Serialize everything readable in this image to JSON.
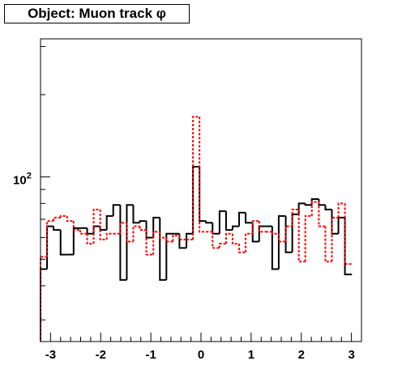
{
  "title": "Object: Muon track φ",
  "chart_data": {
    "type": "histogram",
    "title": "Object: Muon track φ",
    "xlabel": "",
    "ylabel": "",
    "xlim": [
      -3.2,
      3.2
    ],
    "ylim": [
      25,
      320
    ],
    "y_scale": "log",
    "grid": false,
    "legend": "none",
    "x_ticks": [
      "-3",
      "-2",
      "-1",
      "0",
      "1",
      "2",
      "3"
    ],
    "y_ticks": [
      "10^2"
    ],
    "bin_edges": [
      -3.2,
      -3.07,
      -2.94,
      -2.8,
      -2.67,
      -2.54,
      -2.41,
      -2.27,
      -2.14,
      -2.01,
      -1.88,
      -1.75,
      -1.61,
      -1.48,
      -1.35,
      -1.22,
      -1.09,
      -0.95,
      -0.82,
      -0.69,
      -0.56,
      -0.43,
      -0.29,
      -0.16,
      -0.03,
      0.1,
      0.23,
      0.37,
      0.5,
      0.63,
      0.76,
      0.89,
      1.03,
      1.16,
      1.29,
      1.42,
      1.55,
      1.69,
      1.82,
      1.95,
      2.08,
      2.21,
      2.35,
      2.48,
      2.61,
      2.74,
      2.87,
      3.01,
      3.2
    ],
    "series": [
      {
        "color": "#000000",
        "style": "solid",
        "values": [
          46,
          66,
          64,
          52,
          52,
          65,
          65,
          62,
          66,
          64,
          72,
          79,
          42,
          79,
          68,
          69,
          60,
          71,
          42,
          62,
          62,
          55,
          62,
          109,
          69,
          68,
          62,
          75,
          64,
          66,
          74,
          68,
          58,
          66,
          66,
          46,
          72,
          53,
          73,
          80,
          79,
          83,
          79,
          76,
          62,
          71,
          44
        ]
      },
      {
        "color": "#ff0000",
        "style": "dashed",
        "values": [
          51,
          69,
          71,
          72,
          69,
          64,
          62,
          57,
          76,
          59,
          62,
          62,
          68,
          58,
          66,
          64,
          52,
          63,
          60,
          58,
          61,
          59,
          59,
          166,
          63,
          63,
          55,
          57,
          62,
          57,
          53,
          62,
          69,
          63,
          63,
          62,
          58,
          66,
          76,
          49,
          72,
          81,
          66,
          49,
          71,
          80,
          48
        ]
      }
    ]
  }
}
